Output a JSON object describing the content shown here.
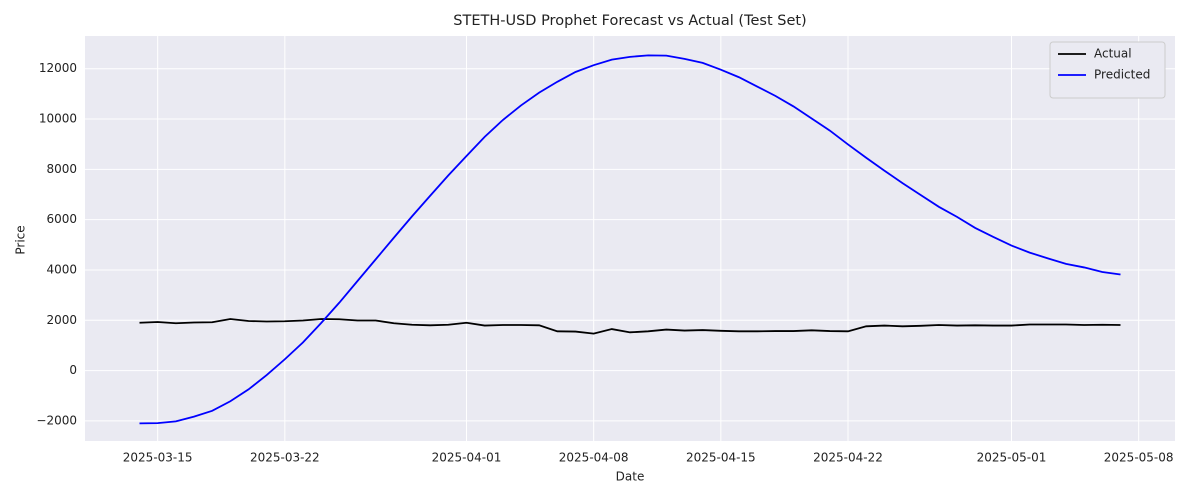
{
  "chart_data": {
    "type": "line",
    "title": "STETH-USD Prophet Forecast vs Actual (Test Set)",
    "x_label": "Date",
    "y_label": "Price",
    "x": [
      "2025-03-14",
      "2025-03-15",
      "2025-03-16",
      "2025-03-17",
      "2025-03-18",
      "2025-03-19",
      "2025-03-20",
      "2025-03-21",
      "2025-03-22",
      "2025-03-23",
      "2025-03-24",
      "2025-03-25",
      "2025-03-26",
      "2025-03-27",
      "2025-03-28",
      "2025-03-29",
      "2025-03-30",
      "2025-03-31",
      "2025-04-01",
      "2025-04-02",
      "2025-04-03",
      "2025-04-04",
      "2025-04-05",
      "2025-04-06",
      "2025-04-07",
      "2025-04-08",
      "2025-04-09",
      "2025-04-10",
      "2025-04-11",
      "2025-04-12",
      "2025-04-13",
      "2025-04-14",
      "2025-04-15",
      "2025-04-16",
      "2025-04-17",
      "2025-04-18",
      "2025-04-19",
      "2025-04-20",
      "2025-04-21",
      "2025-04-22",
      "2025-04-23",
      "2025-04-24",
      "2025-04-25",
      "2025-04-26",
      "2025-04-27",
      "2025-04-28",
      "2025-04-29",
      "2025-04-30",
      "2025-05-01",
      "2025-05-02",
      "2025-05-03",
      "2025-05-04",
      "2025-05-05",
      "2025-05-06",
      "2025-05-07"
    ],
    "series": [
      {
        "name": "Actual",
        "color": "#000000",
        "values": [
          1900,
          1930,
          1880,
          1910,
          1920,
          2050,
          1970,
          1950,
          1960,
          1990,
          2050,
          2040,
          1990,
          1990,
          1880,
          1820,
          1800,
          1820,
          1900,
          1790,
          1810,
          1810,
          1800,
          1560,
          1550,
          1470,
          1650,
          1520,
          1560,
          1630,
          1590,
          1610,
          1580,
          1560,
          1560,
          1570,
          1570,
          1600,
          1570,
          1560,
          1760,
          1790,
          1760,
          1780,
          1810,
          1790,
          1800,
          1790,
          1790,
          1830,
          1830,
          1830,
          1810,
          1820,
          1810
        ]
      },
      {
        "name": "Predicted",
        "color": "#0000ff",
        "values": [
          -2100,
          -2090,
          -2020,
          -1830,
          -1600,
          -1220,
          -750,
          -180,
          450,
          1120,
          1890,
          2700,
          3560,
          4420,
          5280,
          6130,
          6950,
          7760,
          8530,
          9290,
          9960,
          10540,
          11050,
          11480,
          11870,
          12140,
          12360,
          12470,
          12530,
          12520,
          12390,
          12230,
          11960,
          11660,
          11290,
          10920,
          10500,
          10020,
          9540,
          8990,
          8460,
          7950,
          7450,
          6980,
          6510,
          6110,
          5670,
          5310,
          4970,
          4690,
          4460,
          4240,
          4100,
          3920,
          3820
        ]
      }
    ],
    "xlim": [
      "2025-03-11",
      "2025-05-10"
    ],
    "xticks": [
      "2025-03-15",
      "2025-03-22",
      "2025-04-01",
      "2025-04-08",
      "2025-04-15",
      "2025-04-22",
      "2025-05-01",
      "2025-05-08"
    ],
    "ylim": [
      -2800,
      13300
    ],
    "yticks": [
      {
        "value": -2000,
        "label": "−2000"
      },
      0,
      2000,
      4000,
      6000,
      8000,
      10000,
      12000
    ],
    "grid": true,
    "legend": "upper right"
  }
}
